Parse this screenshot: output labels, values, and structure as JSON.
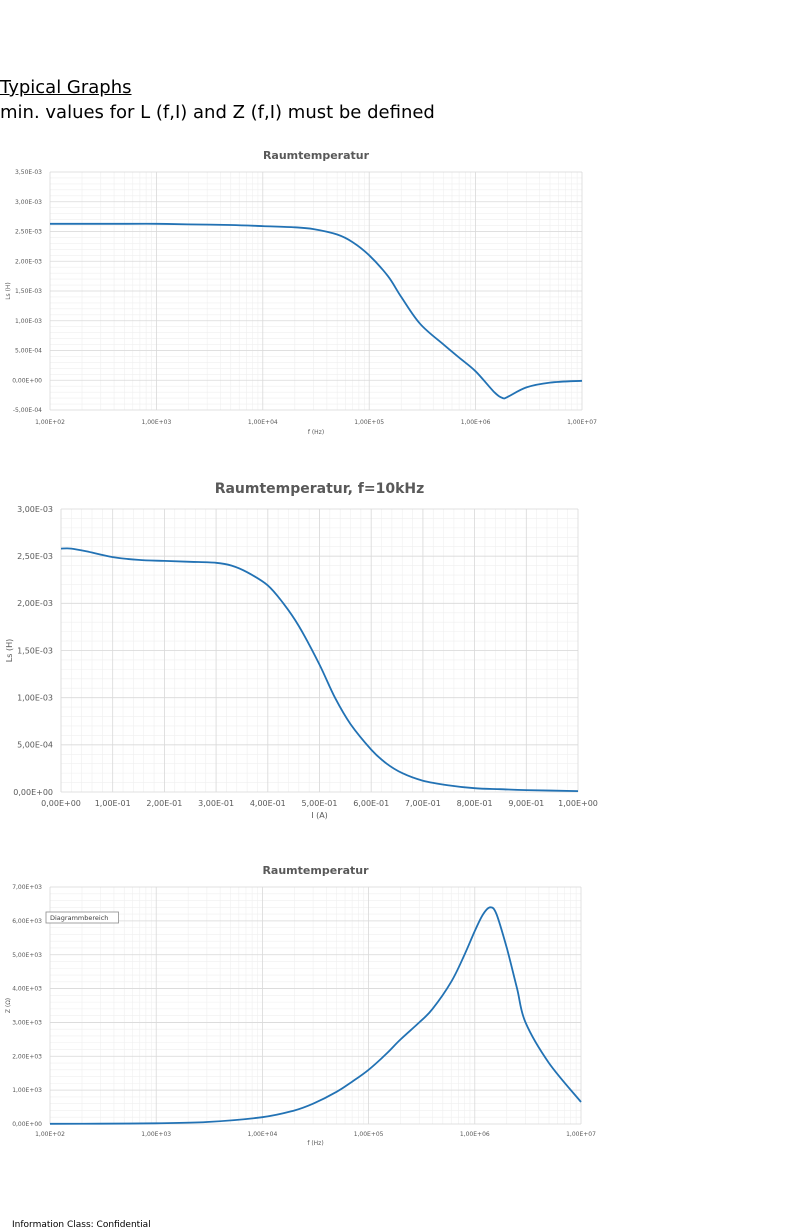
{
  "document": {
    "heading": "Typical Graphs",
    "subheading": "min. values for L (f,I) and Z (f,I) must be defined",
    "footer": "Information Class: Confidential"
  },
  "colors": {
    "line": "#2272b4",
    "grid_major": "#d9d9d9",
    "grid_minor": "#efefef",
    "text": "#595959"
  },
  "chart_data": [
    {
      "type": "line",
      "title": "Raumtemperatur",
      "xlabel": "f (Hz)",
      "ylabel": "Ls (H)",
      "xscale": "log",
      "xlim": [
        100,
        10000000
      ],
      "ylim": [
        -0.0005,
        0.0035
      ],
      "x_ticks": [
        "1,00E+02",
        "1,00E+03",
        "1,00E+04",
        "1,00E+05",
        "1,00E+06",
        "1,00E+07"
      ],
      "y_ticks": [
        "3,50E-03",
        "3,00E-03",
        "2,50E-03",
        "2,00E-03",
        "1,50E-03",
        "1,00E-03",
        "5,00E-04",
        "0,00E+00",
        "-5,00E-04"
      ],
      "grid": true,
      "series": [
        {
          "x": [
            100,
            200,
            500,
            1000,
            2000,
            5000,
            10000,
            20000,
            30000,
            50000,
            70000,
            100000,
            150000,
            200000,
            300000,
            500000,
            700000,
            1000000,
            1500000,
            1800000,
            2000000,
            3000000,
            5000000,
            10000000
          ],
          "y": [
            0.00263,
            0.00263,
            0.00263,
            0.00263,
            0.00262,
            0.00261,
            0.00259,
            0.00257,
            0.00254,
            0.00245,
            0.00232,
            0.0021,
            0.00175,
            0.0014,
            0.00095,
            0.0006,
            0.00038,
            0.00015,
            -0.0002,
            -0.0003,
            -0.00028,
            -0.00012,
            -4e-05,
            -1e-05
          ]
        }
      ]
    },
    {
      "type": "line",
      "title": "Raumtemperatur, f=10kHz",
      "xlabel": "I (A)",
      "ylabel": "Ls (H)",
      "xlim": [
        0,
        1
      ],
      "ylim": [
        0,
        0.003
      ],
      "x_ticks": [
        "0,00E+00",
        "1,00E-01",
        "2,00E-01",
        "3,00E-01",
        "4,00E-01",
        "5,00E-01",
        "6,00E-01",
        "7,00E-01",
        "8,00E-01",
        "9,00E-01",
        "1,00E+00"
      ],
      "y_ticks": [
        "3,00E-03",
        "2,50E-03",
        "2,00E-03",
        "1,50E-03",
        "1,00E-03",
        "5,00E-04",
        "0,00E+00"
      ],
      "grid": true,
      "series": [
        {
          "x": [
            0,
            0.02,
            0.05,
            0.1,
            0.15,
            0.2,
            0.25,
            0.3,
            0.33,
            0.36,
            0.4,
            0.43,
            0.46,
            0.5,
            0.53,
            0.56,
            0.6,
            0.63,
            0.66,
            0.7,
            0.75,
            0.8,
            0.85,
            0.9,
            1.0
          ],
          "y": [
            0.00258,
            0.00258,
            0.00255,
            0.00249,
            0.00246,
            0.00245,
            0.00244,
            0.00243,
            0.0024,
            0.00233,
            0.00219,
            0.002,
            0.00176,
            0.00135,
            0.001,
            0.00072,
            0.00045,
            0.0003,
            0.0002,
            0.00012,
            7e-05,
            4e-05,
            3e-05,
            2e-05,
            1e-05
          ]
        }
      ]
    },
    {
      "type": "line",
      "title": "Raumtemperatur",
      "xlabel": "f (Hz)",
      "ylabel": "Z (Ω)",
      "xscale": "log",
      "xlim": [
        100,
        10000000
      ],
      "ylim": [
        0,
        7000
      ],
      "x_ticks": [
        "1,00E+02",
        "1,00E+03",
        "1,00E+04",
        "1,00E+05",
        "1,00E+06",
        "1,00E+07"
      ],
      "y_ticks": [
        "7,00E+03",
        "6,00E+03",
        "5,00E+03",
        "4,00E+03",
        "3,00E+03",
        "2,00E+03",
        "1,00E+03",
        "0,00E+00"
      ],
      "tooltip": "Diagrammbereich",
      "grid": true,
      "series": [
        {
          "x": [
            100,
            300,
            1000,
            3000,
            10000,
            20000,
            30000,
            50000,
            70000,
            100000,
            150000,
            200000,
            300000,
            400000,
            600000,
            800000,
            1000000,
            1200000,
            1400000,
            1600000,
            2000000,
            2500000,
            3000000,
            5000000,
            10000000
          ],
          "y": [
            5,
            10,
            20,
            60,
            200,
            400,
            600,
            950,
            1250,
            1600,
            2100,
            2500,
            3000,
            3400,
            4200,
            5000,
            5700,
            6200,
            6400,
            6200,
            5200,
            4000,
            3000,
            1800,
            650
          ]
        }
      ]
    }
  ]
}
